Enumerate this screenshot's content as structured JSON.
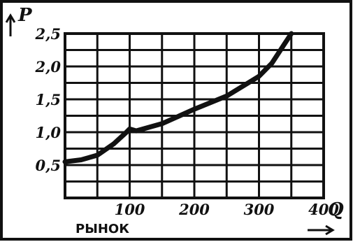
{
  "chart_data": {
    "type": "line",
    "title": "",
    "caption": "РЫНОК",
    "xlabel": "Q",
    "ylabel": "P",
    "xlim": [
      0,
      400
    ],
    "ylim": [
      0,
      2.5
    ],
    "x_ticks": [
      100,
      200,
      300,
      400
    ],
    "x_tick_labels": [
      "100",
      "200",
      "300",
      "400"
    ],
    "y_ticks": [
      0.5,
      1.0,
      1.5,
      2.0,
      2.5
    ],
    "y_tick_labels": [
      "0,5",
      "1,0",
      "1,5",
      "2,0",
      "2,5"
    ],
    "grid": true,
    "series": [
      {
        "x": [
          0,
          25,
          50,
          75,
          95,
          100,
          110,
          150,
          200,
          250,
          300,
          320,
          340,
          350
        ],
        "y": [
          0.55,
          0.58,
          0.65,
          0.82,
          1.0,
          1.05,
          1.02,
          1.13,
          1.35,
          1.55,
          1.85,
          2.05,
          2.35,
          2.5
        ]
      }
    ],
    "line_color": "#111111",
    "background_color": "#ffffff"
  }
}
